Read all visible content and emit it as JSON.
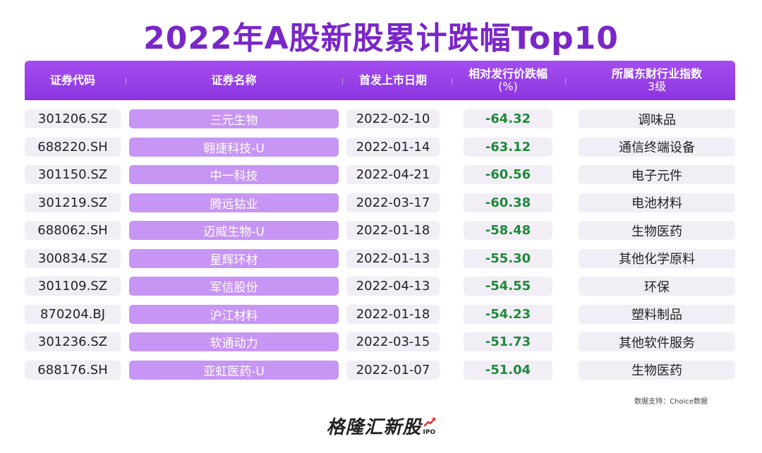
{
  "title": "2022年A股新股累计跌幅Top10",
  "header": {
    "code": "证券代码",
    "name": "证券名称",
    "date": "首发上市日期",
    "change_line1": "相对发行价跌幅",
    "change_line2": "(%)",
    "industry_line1": "所属东财行业指数",
    "industry_line2": "3级"
  },
  "rows": [
    {
      "code": "301206.SZ",
      "name": "三元生物",
      "date": "2022-02-10",
      "change": "-64.32",
      "industry": "调味品"
    },
    {
      "code": "688220.SH",
      "name": "翱捷科技-U",
      "date": "2022-01-14",
      "change": "-63.12",
      "industry": "通信终端设备"
    },
    {
      "code": "301150.SZ",
      "name": "中一科技",
      "date": "2022-04-21",
      "change": "-60.56",
      "industry": "电子元件"
    },
    {
      "code": "301219.SZ",
      "name": "腾远钴业",
      "date": "2022-03-17",
      "change": "-60.38",
      "industry": "电池材料"
    },
    {
      "code": "688062.SH",
      "name": "迈威生物-U",
      "date": "2022-01-18",
      "change": "-58.48",
      "industry": "生物医药"
    },
    {
      "code": "300834.SZ",
      "name": "星辉环材",
      "date": "2022-01-13",
      "change": "-55.30",
      "industry": "其他化学原料"
    },
    {
      "code": "301109.SZ",
      "name": "军信股份",
      "date": "2022-04-13",
      "change": "-54.55",
      "industry": "环保"
    },
    {
      "code": "870204.BJ",
      "name": "沪江材料",
      "date": "2022-01-18",
      "change": "-54.23",
      "industry": "塑料制品"
    },
    {
      "code": "301236.SZ",
      "name": "软通动力",
      "date": "2022-03-15",
      "change": "-51.73",
      "industry": "其他软件服务"
    },
    {
      "code": "688176.SH",
      "name": "亚虹医药-U",
      "date": "2022-01-07",
      "change": "-51.04",
      "industry": "生物医药"
    }
  ],
  "source": "数据支持：Choice数据",
  "brand": {
    "name": "格隆汇新股",
    "tag": "IPO"
  },
  "colors": {
    "title": "#7a26c8",
    "header_bg": "#9a42eb",
    "name_bg": "#c795f4",
    "cell_bg": "#f2eef6",
    "negative": "#1f8a3a"
  },
  "chart_data": {
    "type": "table",
    "title": "2022年A股新股累计跌幅Top10",
    "columns": [
      "证券代码",
      "证券名称",
      "首发上市日期",
      "相对发行价跌幅(%)",
      "所属东财行业指数3级"
    ],
    "rows": [
      [
        "301206.SZ",
        "三元生物",
        "2022-02-10",
        -64.32,
        "调味品"
      ],
      [
        "688220.SH",
        "翱捷科技-U",
        "2022-01-14",
        -63.12,
        "通信终端设备"
      ],
      [
        "301150.SZ",
        "中一科技",
        "2022-04-21",
        -60.56,
        "电子元件"
      ],
      [
        "301219.SZ",
        "腾远钴业",
        "2022-03-17",
        -60.38,
        "电池材料"
      ],
      [
        "688062.SH",
        "迈威生物-U",
        "2022-01-18",
        -58.48,
        "生物医药"
      ],
      [
        "300834.SZ",
        "星辉环材",
        "2022-01-13",
        -55.3,
        "其他化学原料"
      ],
      [
        "301109.SZ",
        "军信股份",
        "2022-04-13",
        -54.55,
        "环保"
      ],
      [
        "870204.BJ",
        "沪江材料",
        "2022-01-18",
        -54.23,
        "塑料制品"
      ],
      [
        "301236.SZ",
        "软通动力",
        "2022-03-15",
        -51.73,
        "其他软件服务"
      ],
      [
        "688176.SH",
        "亚虹医药-U",
        "2022-01-07",
        -51.04,
        "生物医药"
      ]
    ]
  }
}
